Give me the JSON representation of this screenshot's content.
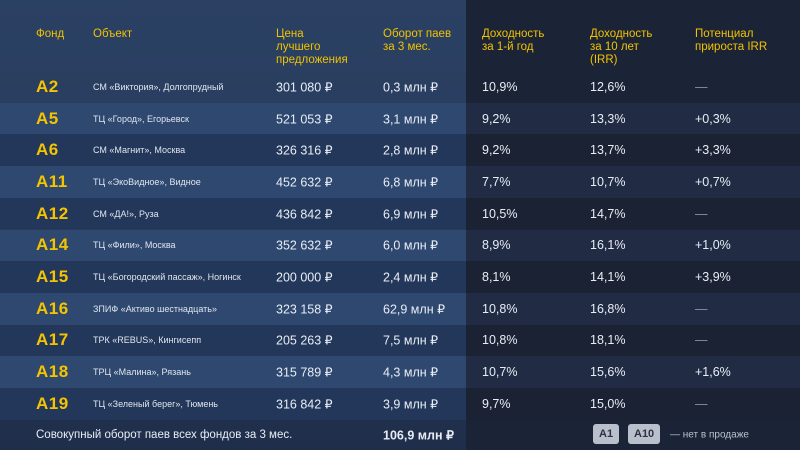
{
  "headers": [
    "Фонд",
    "Объект",
    "Цена лучшего предложения",
    "Оборот паев за 3 мес.",
    "Доходность за 1-й год",
    "Доходность за 10 лет (IRR)",
    "Потенциал прироста IRR"
  ],
  "header_lines": [
    [
      "Фонд"
    ],
    [
      "Объект"
    ],
    [
      "Цена",
      "лучшего",
      "предложения"
    ],
    [
      "Оборот паев",
      "за 3 мес."
    ],
    [
      "Доходность",
      "за 1-й год"
    ],
    [
      "Доходность",
      "за 10 лет",
      "(IRR)"
    ],
    [
      "Потенциал",
      "прироста IRR"
    ]
  ],
  "rows": [
    {
      "fund": "A2",
      "object": "СМ «Виктория», Долгопрудный",
      "price": "301 080 ₽",
      "turnover": "0,3 млн ₽",
      "y1": "10,9%",
      "y10": "12,6%",
      "potential": "—"
    },
    {
      "fund": "A5",
      "object": "ТЦ «Город», Егорьевск",
      "price": "521 053 ₽",
      "turnover": "3,1 млн ₽",
      "y1": "9,2%",
      "y10": "13,3%",
      "potential": "+0,3%"
    },
    {
      "fund": "A6",
      "object": "СМ «Магнит», Москва",
      "price": "326 316 ₽",
      "turnover": "2,8 млн ₽",
      "y1": "9,2%",
      "y10": "13,7%",
      "potential": "+3,3%"
    },
    {
      "fund": "A11",
      "object": "ТЦ «ЭкоВидное», Видное",
      "price": "452 632 ₽",
      "turnover": "6,8 млн ₽",
      "y1": "7,7%",
      "y10": "10,7%",
      "potential": "+0,7%"
    },
    {
      "fund": "A12",
      "object": "СМ «ДА!», Руза",
      "price": "436 842 ₽",
      "turnover": "6,9 млн ₽",
      "y1": "10,5%",
      "y10": "14,7%",
      "potential": "—"
    },
    {
      "fund": "A14",
      "object": "ТЦ «Фили», Москва",
      "price": "352 632 ₽",
      "turnover": "6,0 млн ₽",
      "y1": "8,9%",
      "y10": "16,1%",
      "potential": "+1,0%"
    },
    {
      "fund": "A15",
      "object": "ТЦ «Богородский пассаж», Ногинск",
      "price": "200 000 ₽",
      "turnover": "2,4 млн ₽",
      "y1": "8,1%",
      "y10": "14,1%",
      "potential": "+3,9%"
    },
    {
      "fund": "A16",
      "object": "ЗПИФ «Активо шестнадцать»",
      "price": "323 158 ₽",
      "turnover": "62,9 млн ₽",
      "y1": "10,8%",
      "y10": "16,8%",
      "potential": "—"
    },
    {
      "fund": "A17",
      "object": "ТРК «REBUS», Кингисепп",
      "price": "205 263 ₽",
      "turnover": "7,5 млн ₽",
      "y1": "10,8%",
      "y10": "18,1%",
      "potential": "—"
    },
    {
      "fund": "A18",
      "object": "ТРЦ «Малина», Рязань",
      "price": "315 789 ₽",
      "turnover": "4,3 млн ₽",
      "y1": "10,7%",
      "y10": "15,6%",
      "potential": "+1,6%"
    },
    {
      "fund": "A19",
      "object": "ТЦ «Зеленый берег», Тюмень",
      "price": "316 842 ₽",
      "turnover": "3,9 млн ₽",
      "y1": "9,7%",
      "y10": "15,0%",
      "potential": "—"
    }
  ],
  "footer": {
    "label": "Совокупный оборот паев всех фондов за 3 мес.",
    "total": "106,9 млн ₽",
    "badges": [
      "A1",
      "A10"
    ],
    "not_for_sale": "— нет в продаже"
  }
}
